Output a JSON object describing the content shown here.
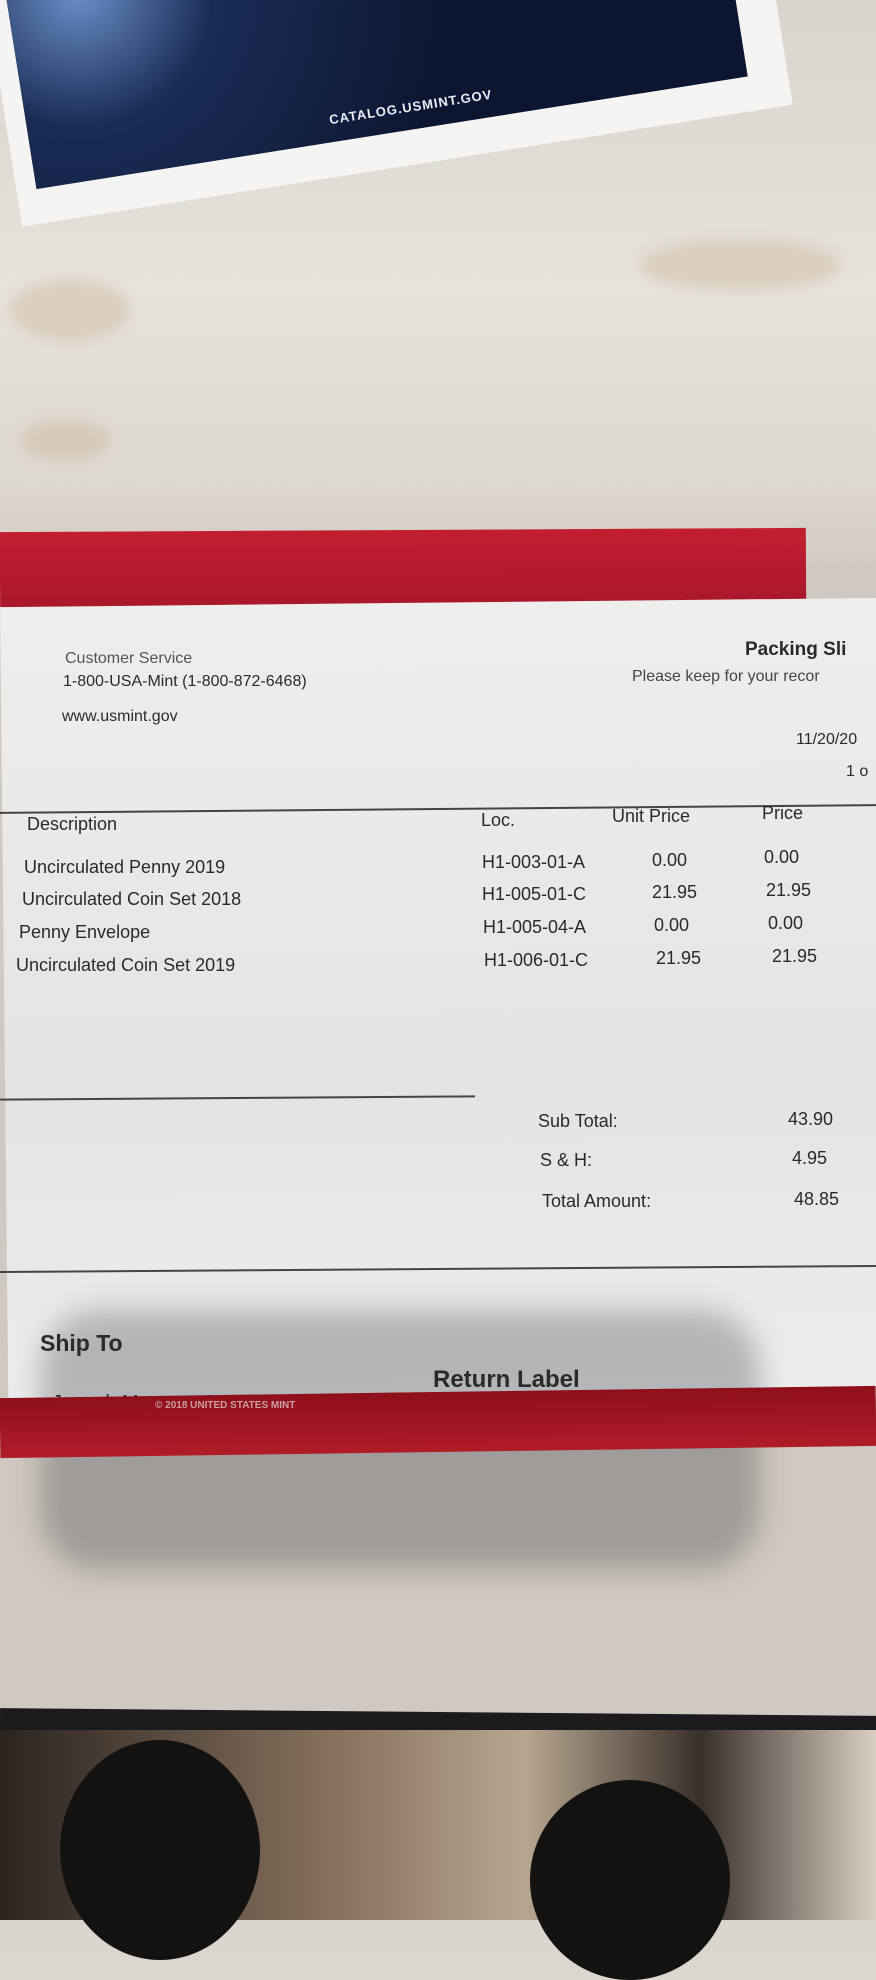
{
  "card": {
    "url": "CATALOG.USMINT.GOV"
  },
  "slip": {
    "customer_service_label": "Customer Service",
    "phone": "1-800-USA-Mint (1-800-872-6468)",
    "website": "www.usmint.gov",
    "title": "Packing Sli",
    "subtitle": "Please keep for your recor",
    "date": "11/20/20",
    "page": "1 o",
    "columns": [
      "Description",
      "Loc.",
      "Unit Price",
      "Price"
    ],
    "items": [
      {
        "description": "Uncirculated Penny 2019",
        "loc": "H1-003-01-A",
        "unit_price": "0.00",
        "price": "0.00"
      },
      {
        "description": "Uncirculated Coin Set 2018",
        "loc": "H1-005-01-C",
        "unit_price": "21.95",
        "price": "21.95"
      },
      {
        "description": "Penny Envelope",
        "loc": "H1-005-04-A",
        "unit_price": "0.00",
        "price": "0.00"
      },
      {
        "description": "Uncirculated Coin Set 2019",
        "loc": "H1-006-01-C",
        "unit_price": "21.95",
        "price": "21.95"
      }
    ],
    "totals": [
      {
        "label": "Sub Total:",
        "value": "43.90"
      },
      {
        "label": "S & H:",
        "value": "4.95"
      },
      {
        "label": "Total Amount:",
        "value": "48.85"
      }
    ],
    "ship_to_label": "Ship To",
    "ship_to_name": "Joseph Maresca Jr",
    "return_label": "Return Label"
  },
  "folder": {
    "copyright": "© 2018 UNITED STATES MINT",
    "color": "#b01c28"
  }
}
